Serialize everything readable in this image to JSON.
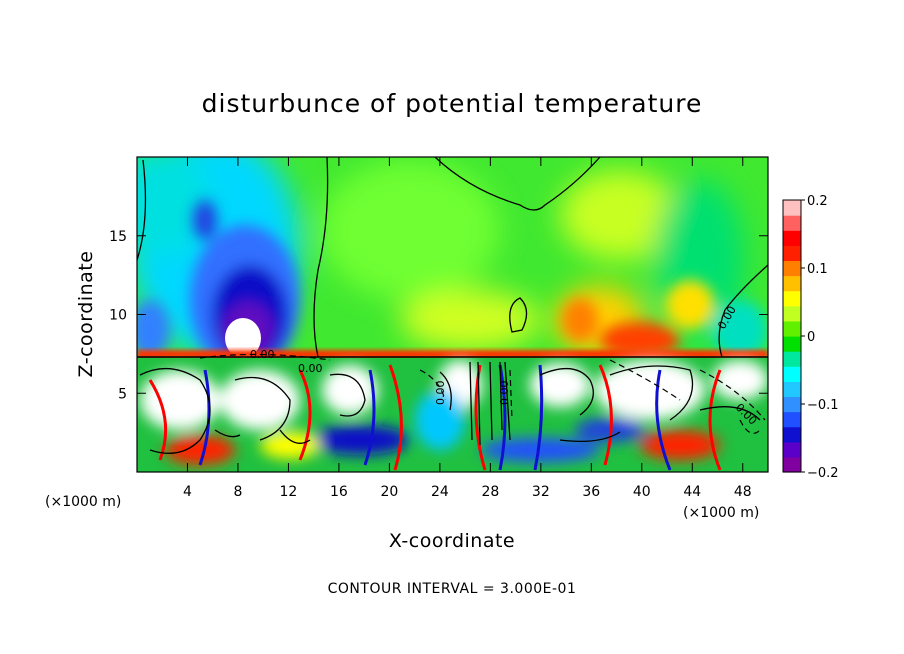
{
  "chart_data": {
    "type": "heatmap",
    "title": "disturbunce of potential temperature",
    "xlabel": "X-coordinate",
    "ylabel": "Z-coordinate",
    "x_unit": "(×1000 m)",
    "y_unit": "(×1000 m)",
    "xlim": [
      0,
      50
    ],
    "ylim": [
      0,
      20
    ],
    "x_ticks": [
      4,
      8,
      12,
      16,
      20,
      24,
      28,
      32,
      36,
      40,
      44,
      48
    ],
    "y_ticks": [
      5,
      10,
      15
    ],
    "colorbar": {
      "range": [
        -0.2,
        0.2
      ],
      "ticks": [
        {
          "value": 0.2,
          "label": "0.2"
        },
        {
          "value": 0.1,
          "label": "0.1"
        },
        {
          "value": 0.0,
          "label": "0"
        },
        {
          "value": -0.1,
          "label": "−0.1"
        },
        {
          "value": -0.2,
          "label": "−0.2"
        }
      ],
      "colors": [
        "#8000a0",
        "#5a00c8",
        "#1010d0",
        "#2050ff",
        "#3090ff",
        "#20c8ff",
        "#00ffff",
        "#00e8a0",
        "#00e000",
        "#60f000",
        "#c0ff20",
        "#ffff00",
        "#ffc000",
        "#ff8000",
        "#ff2000",
        "#ff0000",
        "#ff6060",
        "#ffc0c0"
      ]
    },
    "contour_labels": [
      "0.00",
      "0.00",
      "0.00",
      "0.00",
      "0.00",
      "0.00"
    ],
    "annotation": "CONTOUR INTERVAL = 3.000E-01"
  }
}
